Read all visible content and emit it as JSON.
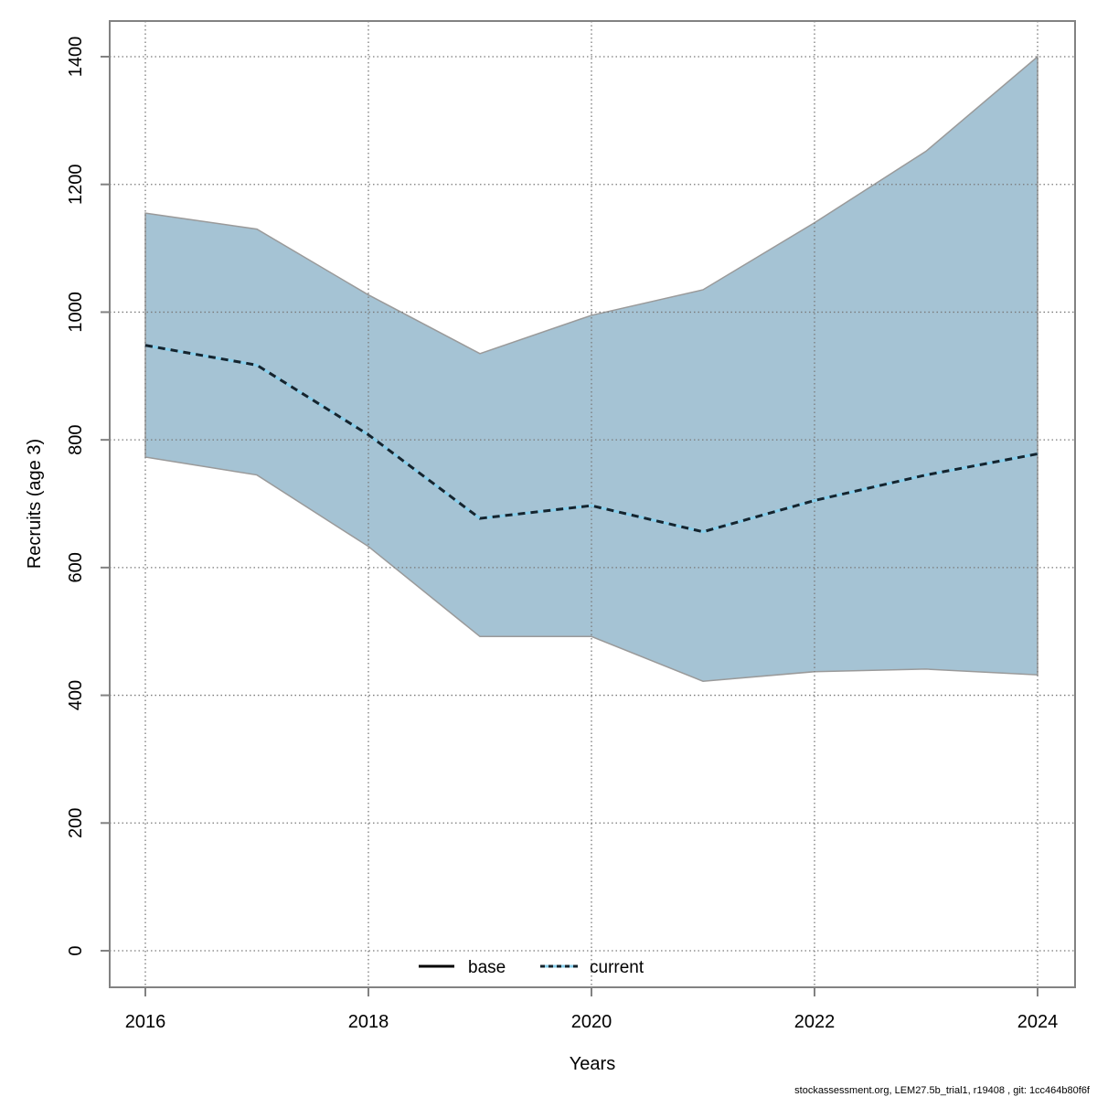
{
  "figure": {
    "footer": "stockassessment.org, LEM27.5b_trial1, r19408 , git: 1cc464b80f6f"
  },
  "chart_data": {
    "type": "area",
    "title": "",
    "xlabel": "Years",
    "ylabel": "Recruits (age 3)",
    "x": [
      2016,
      2017,
      2018,
      2019,
      2020,
      2021,
      2022,
      2023,
      2024
    ],
    "x_ticks": [
      2016,
      2018,
      2020,
      2022,
      2024
    ],
    "y_ticks": [
      0,
      200,
      400,
      600,
      800,
      1000,
      1200,
      1400
    ],
    "ylim": [
      0,
      1400
    ],
    "grid": "dotted",
    "series": [
      {
        "name": "current_median",
        "values": [
          948,
          917,
          808,
          677,
          697,
          656,
          705,
          745,
          778
        ]
      },
      {
        "name": "ci_lower",
        "values": [
          773,
          745,
          633,
          492,
          492,
          422,
          437,
          441,
          432
        ]
      },
      {
        "name": "ci_upper",
        "values": [
          1155,
          1130,
          1027,
          935,
          995,
          1035,
          1140,
          1252,
          1400
        ]
      }
    ],
    "legend": {
      "position": "bottom-center",
      "entries": [
        {
          "label": "base",
          "style": "solid",
          "color": "#000000"
        },
        {
          "label": "current",
          "style": "dotted",
          "color": "#87ceeb"
        }
      ]
    },
    "colors": {
      "band": "#a5c3d4",
      "band_edge": "#9a9a9a",
      "line_base_blue": "#87ceeb",
      "line_dash": "#15242e",
      "grid": "#7a7a7a",
      "box": "#828282",
      "text": "#000000"
    }
  }
}
